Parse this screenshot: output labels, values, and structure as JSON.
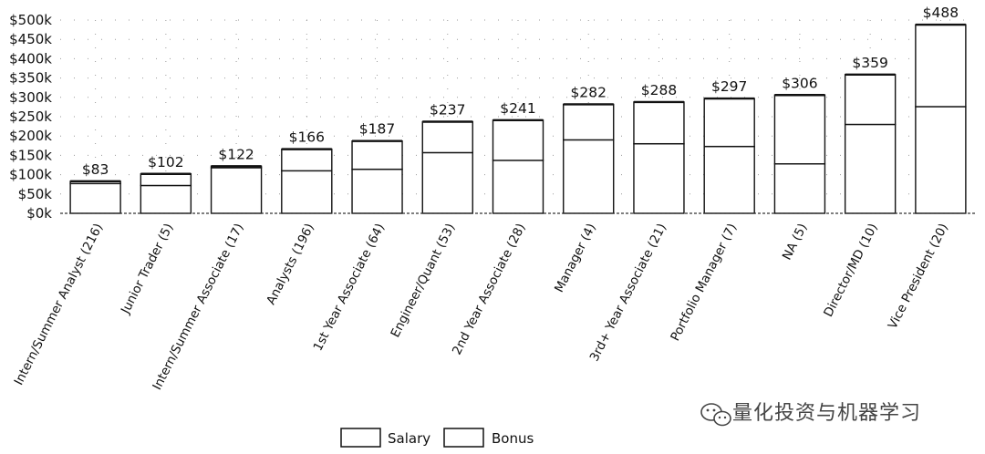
{
  "chart_data": {
    "type": "bar",
    "stacked": true,
    "categories": [
      "Intern/Summer Analyst (216)",
      "Junior Trader (5)",
      "Intern/Summer Associate (17)",
      "Analysts (196)",
      "1st Year Associate (64)",
      "Engineer/Quant (53)",
      "2nd Year Associate (28)",
      "Manager (4)",
      "3rd+ Year Associate (21)",
      "Portfolio Manager (7)",
      "NA (5)",
      "Director/MD (10)",
      "Vice President (20)"
    ],
    "series": [
      {
        "name": "Salary",
        "values": [
          77,
          72,
          118,
          110,
          114,
          157,
          137,
          190,
          180,
          173,
          128,
          230,
          276
        ]
      },
      {
        "name": "Bonus",
        "values": [
          6,
          30,
          4,
          56,
          73,
          80,
          104,
          92,
          108,
          124,
          178,
          129,
          212
        ]
      }
    ],
    "totals": [
      83,
      102,
      122,
      166,
      187,
      237,
      241,
      282,
      288,
      297,
      306,
      359,
      488
    ],
    "total_labels": [
      "$83",
      "$102",
      "$122",
      "$166",
      "$187",
      "$237",
      "$241",
      "$282",
      "$288",
      "$297",
      "$306",
      "$359",
      "$488"
    ],
    "y_ticks": [
      0,
      50,
      100,
      150,
      200,
      250,
      300,
      350,
      400,
      450,
      500
    ],
    "y_tick_labels": [
      "$0k",
      "$50k",
      "$100k",
      "$150k",
      "$200k",
      "$250k",
      "$300k",
      "$350k",
      "$400k",
      "$450k",
      "$500k"
    ],
    "ylim": [
      0,
      500
    ],
    "title": "",
    "xlabel": "",
    "ylabel": "",
    "grid": true,
    "legend_position": "bottom-center",
    "legend": [
      "Salary",
      "Bonus"
    ],
    "colors": {
      "bar_fill": "#ffffff",
      "bar_stroke": "#111111"
    }
  },
  "watermark": {
    "icon": "wechat-icon",
    "text": "量化投资与机器学习"
  }
}
